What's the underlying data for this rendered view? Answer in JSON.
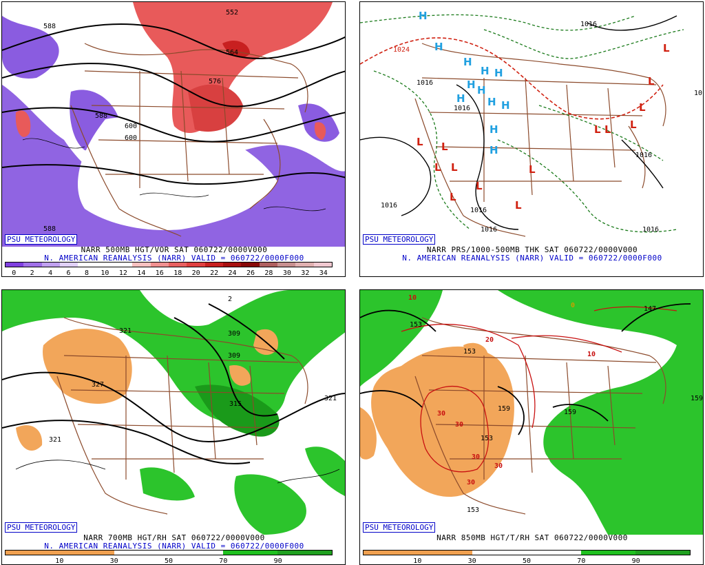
{
  "panels": [
    {
      "id": "p1",
      "caption_line1": "NARR 500MB HGT/VOR SAT 060722/0000V000",
      "caption_line2": "N. AMERICAN REANALYSIS (NARR) VALID = 060722/0000F000",
      "logo": "PSU METEOROLOGY",
      "contour_labels": [
        "588",
        "552",
        "564",
        "576",
        "588",
        "588",
        "600",
        "600"
      ],
      "legend_ticks": [
        "0",
        "2",
        "4",
        "6",
        "8",
        "10",
        "12",
        "14",
        "16",
        "18",
        "20",
        "22",
        "24",
        "26",
        "28",
        "30",
        "32",
        "34"
      ],
      "legend_colors": [
        "#8040e0",
        "#a070e8",
        "#c0a0f0",
        "#e0d0f8",
        "#ffffff",
        "#ffffff",
        "#ffffff",
        "#f8c0c0",
        "#f09090",
        "#e86060",
        "#e04040",
        "#c82020",
        "#a81010",
        "#880808",
        "#b06060",
        "#c89090",
        "#e0b0b0",
        "#f0c8d0"
      ],
      "colors": {
        "negative": "#8a5ce0",
        "positive": "#e85a5a",
        "land": "#ffffff"
      }
    },
    {
      "id": "p2",
      "caption_line1": "NARR PRS/1000-500MB THK SAT 060722/0000V000",
      "caption_line2": "N. AMERICAN REANALYSIS (NARR) VALID = 060722/0000F000",
      "logo": "PSU METEOROLOGY",
      "contour_labels": [
        "1016",
        "1024",
        "1016",
        "1016",
        "1016",
        "1016",
        "1016",
        "1016",
        "1016",
        "1016"
      ],
      "hi_symbol": "H",
      "lo_symbol": "L",
      "colors": {
        "high": "#20a0e0",
        "low": "#d02010",
        "thickness": "#1a7a1a",
        "isobar": "#000000"
      }
    },
    {
      "id": "p3",
      "caption_line1": "NARR 700MB HGT/RH SAT 060722/0000V000",
      "caption_line2": "N. AMERICAN REANALYSIS (NARR) VALID = 060722/0000F000",
      "logo": "PSU METEOROLOGY",
      "contour_labels": [
        "321",
        "327",
        "321",
        "309",
        "315",
        "321",
        "2"
      ],
      "legend_ticks": [
        "10",
        "30",
        "50",
        "70",
        "90"
      ],
      "legend_colors": [
        "#f0a050",
        "#f0a050",
        "#ffffff",
        "#ffffff",
        "#20c020",
        "#20a020"
      ],
      "colors": {
        "dry": "#f2a65a",
        "moist": "#2cc42c",
        "moist_dark": "#1a9a1a"
      }
    },
    {
      "id": "p4",
      "caption_line1": "NARR 850MB HGT/T/RH SAT 060722/0000V000",
      "caption_line2": "",
      "logo": "PSU METEOROLOGY",
      "contour_labels": [
        "153",
        "153",
        "159",
        "153",
        "153",
        "159",
        "159",
        "147"
      ],
      "isotherm_labels": [
        "30",
        "30",
        "30",
        "30",
        "30",
        "20",
        "10",
        "10",
        "0"
      ],
      "legend_ticks": [
        "10",
        "30",
        "50",
        "70",
        "90"
      ],
      "legend_colors": [
        "#f0a050",
        "#f0a050",
        "#ffffff",
        "#ffffff",
        "#20c020",
        "#20a020"
      ],
      "colors": {
        "dry": "#f2a65a",
        "moist": "#2cc42c",
        "isotherm": "#c81010"
      }
    }
  ],
  "map_colors": {
    "borders": "#8b4a2b",
    "contours": "#000000"
  }
}
